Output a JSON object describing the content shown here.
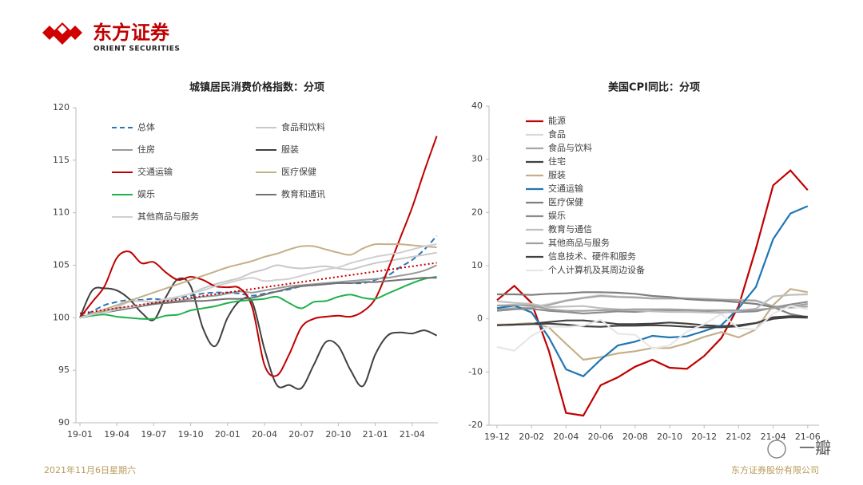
{
  "header": {
    "brand": "东方证券",
    "brand_en": "ORIENT SECURITIES"
  },
  "footer": {
    "date": "2021年11月6日星期六",
    "company": "东方证券股份有限公司",
    "watermark": "一瓣"
  },
  "chart_data": [
    {
      "type": "line",
      "title": "城镇居民消费价格指数：分项",
      "smooth": true,
      "legend": "upper left",
      "trendline": {
        "series": 0,
        "color": "#c00000"
      },
      "categories": [
        "19-01",
        null,
        null,
        "19-04",
        null,
        null,
        "19-07",
        null,
        null,
        "19-10",
        null,
        null,
        "20-01",
        null,
        null,
        "20-04",
        null,
        null,
        "20-07",
        null,
        null,
        "20-10",
        null,
        null,
        "21-01",
        null,
        null,
        "21-04",
        null,
        null
      ],
      "ylim": [
        90,
        120
      ],
      "yticks": [
        90,
        95,
        100,
        105,
        110,
        115,
        120
      ],
      "series": [
        {
          "name": "总体",
          "color": "#2e75b6",
          "dashed": true,
          "values": [
            100,
            100.6,
            101.2,
            101.5,
            101.7,
            101.7,
            101.8,
            101.7,
            101.9,
            102.1,
            102.3,
            102.4,
            102.4,
            102.3,
            102.1,
            102.3,
            102.5,
            102.7,
            103,
            103.1,
            103.2,
            103.3,
            103.3,
            103.3,
            103.6,
            104,
            104.8,
            105.5,
            106.5,
            107.8
          ]
        },
        {
          "name": "食品和饮料",
          "color": "#c8c8c8",
          "values": [
            100,
            100.3,
            100.6,
            101,
            101.5,
            101.6,
            101.5,
            101.7,
            102,
            102.3,
            102.8,
            103.2,
            103.5,
            103.8,
            104.3,
            104.6,
            105,
            104.8,
            104.7,
            104.8,
            104.9,
            104.7,
            104.6,
            104.9,
            105.2,
            105.4,
            105.6,
            105.8,
            106,
            106.2
          ]
        },
        {
          "name": "住房",
          "color": "#999999",
          "values": [
            100,
            100.3,
            100.6,
            100.9,
            101,
            101.2,
            101.4,
            101.5,
            101.6,
            101.8,
            102,
            102.1,
            102.3,
            102.5,
            102.4,
            102.6,
            102.8,
            103,
            103.1,
            103.2,
            103.3,
            103.4,
            103.5,
            103.6,
            103.7,
            103.8,
            104,
            104.2,
            104.5,
            105
          ]
        },
        {
          "name": "服装",
          "color": "#404040",
          "values": [
            100,
            102.6,
            102.8,
            102.6,
            101.8,
            100.5,
            99.8,
            102,
            103.7,
            103,
            99,
            97.3,
            100,
            101.6,
            101.5,
            97,
            93.6,
            93.6,
            93.3,
            95.5,
            97.7,
            97.3,
            95,
            93.5,
            96.5,
            98.3,
            98.6,
            98.5,
            98.8,
            98.3
          ]
        },
        {
          "name": "交通运输",
          "color": "#c00000",
          "values": [
            100,
            101.5,
            103,
            105.7,
            106.3,
            105.2,
            105.3,
            104.3,
            103.6,
            103.9,
            103.6,
            103,
            102.9,
            102.8,
            101,
            95.5,
            94.5,
            96.5,
            99.1,
            99.9,
            100.1,
            100.2,
            100.1,
            100.6,
            101.8,
            104.5,
            107.5,
            110.5,
            114,
            117.3
          ]
        },
        {
          "name": "医疗保健",
          "color": "#c4b088",
          "values": [
            100,
            100.4,
            100.8,
            101.2,
            101.6,
            102,
            102.4,
            102.8,
            103.2,
            103.6,
            104,
            104.4,
            104.8,
            105.1,
            105.4,
            105.8,
            106.1,
            106.5,
            106.8,
            106.8,
            106.5,
            106.2,
            106,
            106.6,
            107,
            107,
            107,
            106.9,
            106.8,
            106.7
          ]
        },
        {
          "name": "娱乐",
          "color": "#21b14c",
          "values": [
            100,
            100.2,
            100.3,
            100.1,
            100,
            99.9,
            99.9,
            100.2,
            100.3,
            100.7,
            100.9,
            101.1,
            101.4,
            101.6,
            101.7,
            101.8,
            102,
            101.4,
            100.9,
            101.5,
            101.6,
            102,
            102.2,
            101.9,
            101.8,
            102.3,
            102.8,
            103.3,
            103.7,
            103.9
          ]
        },
        {
          "name": "教育和通讯",
          "color": "#707070",
          "values": [
            100,
            100.3,
            100.5,
            100.7,
            100.9,
            101.1,
            101.3,
            101.4,
            101.5,
            101.6,
            101.6,
            101.7,
            101.8,
            101.8,
            101.9,
            102.2,
            102.5,
            102.8,
            103,
            103.1,
            103.2,
            103.3,
            103.3,
            103.4,
            103.4,
            103.5,
            103.6,
            103.7,
            103.8,
            103.8
          ]
        },
        {
          "name": "其他商品与服务",
          "color": "#d0d0d0",
          "values": [
            100,
            100.3,
            100.5,
            100.8,
            101,
            101.2,
            101.5,
            101.8,
            102,
            102.3,
            102.6,
            103,
            103.3,
            103.6,
            103.8,
            103.5,
            103.6,
            103.7,
            104,
            104.3,
            104.6,
            104.8,
            105.2,
            105.5,
            105.8,
            106,
            106.2,
            106.5,
            106.8,
            107
          ]
        }
      ]
    },
    {
      "type": "line",
      "title": "美国CPI同比：分项",
      "smooth": false,
      "legend": "upper left",
      "categories": [
        "19-12",
        null,
        "20-02",
        null,
        "20-04",
        null,
        "20-06",
        null,
        "20-08",
        null,
        "20-10",
        null,
        "20-12",
        null,
        "21-02",
        null,
        "21-04",
        null,
        "21-06"
      ],
      "ylim": [
        -20,
        40
      ],
      "yticks": [
        -20,
        -10,
        0,
        10,
        20,
        30,
        40
      ],
      "series": [
        {
          "name": "能源",
          "color": "#c00000",
          "values": [
            3.5,
            6.2,
            3,
            -6,
            -17.7,
            -18.2,
            -12.5,
            -11,
            -9,
            -7.7,
            -9.2,
            -9.4,
            -7,
            -3.6,
            2.4,
            13.2,
            25.1,
            27.9,
            24.2
          ]
        },
        {
          "name": "食品",
          "color": "#d9d9d9",
          "values": [
            1.8,
            2,
            2.2,
            2.8,
            3.5,
            4,
            4.5,
            4.2,
            4.1,
            3.9,
            3.9,
            3.9,
            3.8,
            3.6,
            3.6,
            3.5,
            2.4,
            2.2,
            2.4
          ]
        },
        {
          "name": "食品与饮料",
          "color": "#a6a6a6",
          "values": [
            1.8,
            2,
            2.1,
            2.6,
            3.4,
            3.9,
            4.3,
            4.1,
            4,
            3.8,
            3.8,
            3.8,
            3.7,
            3.6,
            3.5,
            3.4,
            2.3,
            2.1,
            2.3
          ]
        },
        {
          "name": "住宅",
          "color": "#404040",
          "values": [
            -1.2,
            -1.1,
            -0.9,
            -0.6,
            -0.3,
            -0.3,
            -0.6,
            -1,
            -1,
            -0.9,
            -0.7,
            -0.9,
            -1.2,
            -1.4,
            -1.2,
            -0.8,
            0,
            0.3,
            0.2
          ]
        },
        {
          "name": "服装",
          "color": "#c4b088",
          "values": [
            -1.1,
            -1,
            -0.8,
            -1.6,
            -4.7,
            -7.7,
            -7.2,
            -6.5,
            -6.1,
            -5.5,
            -5.5,
            -4.6,
            -3.4,
            -2.5,
            -3.5,
            -2,
            2.6,
            5.6,
            5
          ]
        },
        {
          "name": "交通运输",
          "color": "#1f77b4",
          "values": [
            2,
            2.5,
            1.2,
            -3.5,
            -9.5,
            -10.8,
            -7.7,
            -5,
            -4.3,
            -3.2,
            -3.5,
            -3.3,
            -2.3,
            -1.2,
            2,
            6,
            15,
            19.8,
            21.2
          ]
        },
        {
          "name": "医疗保健",
          "color": "#7f7f7f",
          "values": [
            4.6,
            4.6,
            4.5,
            4.7,
            4.8,
            5,
            5,
            4.9,
            4.7,
            4.3,
            4.1,
            3.7,
            3.5,
            3.4,
            3.1,
            2.8,
            2.2,
            0.9,
            0.3
          ]
        },
        {
          "name": "娱乐",
          "color": "#8c8c8c",
          "values": [
            1.5,
            1.8,
            1.9,
            1.5,
            1.3,
            1,
            1.2,
            1.4,
            1.3,
            1.5,
            1.5,
            1.4,
            1.3,
            1.2,
            1.3,
            1.4,
            2.1,
            2.7,
            3.2
          ]
        },
        {
          "name": "教育与通信",
          "color": "#bfbfbf",
          "values": [
            3.3,
            3,
            2.8,
            2.2,
            2.3,
            2.4,
            2,
            1.8,
            1.6,
            1.4,
            1.3,
            1.3,
            1.2,
            1.1,
            1.5,
            1.9,
            4.2,
            4.5,
            4.6
          ]
        },
        {
          "name": "其他商品与服务",
          "color": "#a0a0a0",
          "values": [
            2.5,
            2.6,
            2.5,
            1.8,
            1.5,
            1.5,
            1.6,
            1.7,
            1.8,
            1.8,
            1.8,
            1.7,
            1.6,
            1.6,
            1.6,
            1.7,
            2,
            2.3,
            2.8
          ]
        },
        {
          "name": "信息技术、硬件和服务",
          "color": "#404040",
          "values": [
            -1.2,
            -1.1,
            -1,
            -0.9,
            -1.1,
            -1.4,
            -1.5,
            -1.3,
            -1.3,
            -1.2,
            -1.3,
            -1.5,
            -1.6,
            -1.6,
            -1.4,
            -0.8,
            0.3,
            0.5,
            0.4
          ]
        },
        {
          "name": "个人计算机及其周边设备",
          "color": "#e7e7e7",
          "values": [
            -5.3,
            -6,
            -3.2,
            -1.5,
            -1.5,
            -1.3,
            -0.2,
            -2.8,
            -3,
            -5.6,
            -5,
            -2.4,
            -1,
            0.9,
            -1.8,
            -2,
            1,
            2.4,
            1.8
          ]
        }
      ]
    }
  ]
}
